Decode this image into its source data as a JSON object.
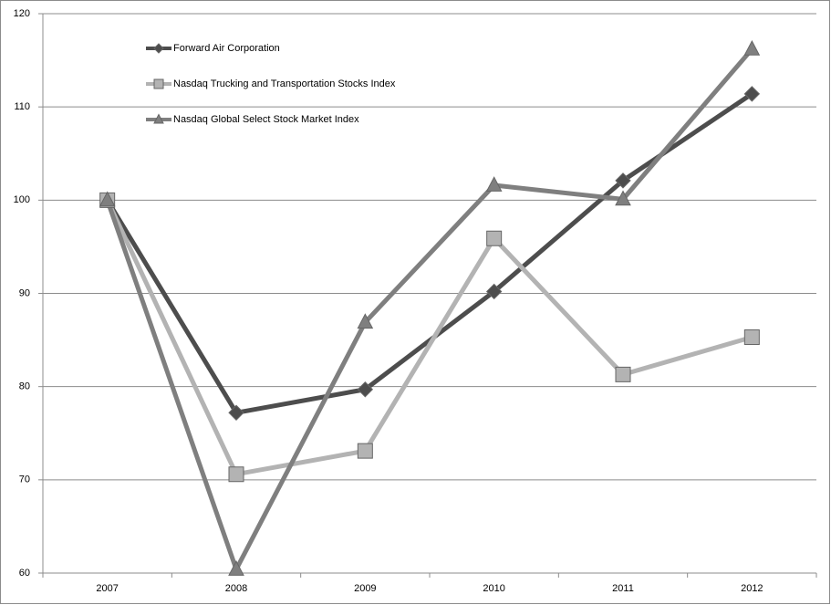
{
  "chart_data": {
    "type": "line",
    "categories": [
      "2007",
      "2008",
      "2009",
      "2010",
      "2011",
      "2012"
    ],
    "series": [
      {
        "name": "Forward Air Corporation",
        "color": "#4d4d4d",
        "marker": "diamond",
        "values": [
          100,
          77.2,
          79.7,
          90.2,
          102.1,
          111.4
        ]
      },
      {
        "name": "Nasdaq Trucking and Transportation Stocks Index",
        "color": "#b3b3b3",
        "marker": "square",
        "values": [
          100,
          70.6,
          73.1,
          95.9,
          81.3,
          85.3
        ]
      },
      {
        "name": "Nasdaq Global Select Stock Market Index",
        "color": "#7f7f7f",
        "marker": "triangle",
        "values": [
          100,
          60.4,
          86.9,
          101.6,
          100.1,
          116.2
        ]
      }
    ],
    "ylim": [
      60,
      120
    ],
    "yticks": [
      60,
      70,
      80,
      90,
      100,
      110,
      120
    ],
    "grid": true,
    "legend": "top-left"
  }
}
